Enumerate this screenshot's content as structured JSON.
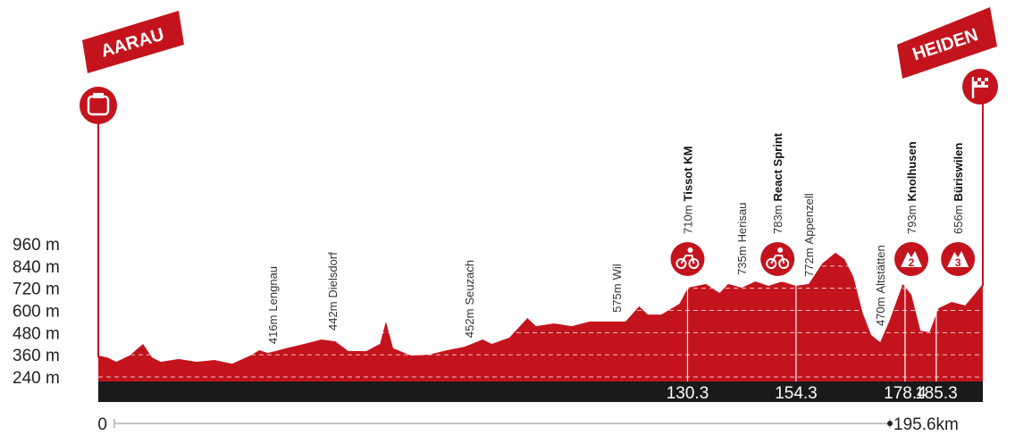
{
  "chart_data": {
    "type": "area",
    "start": "AARAU",
    "finish": "HEIDEN",
    "x": [
      0,
      2,
      4,
      6.9,
      9.9,
      11.9,
      13.8,
      17.8,
      21.7,
      25.7,
      29.6,
      33.6,
      35.6,
      37.5,
      41.5,
      45.5,
      49.4,
      52.4,
      55.3,
      59.3,
      62.3,
      63.6,
      65.2,
      69.2,
      73.1,
      77.1,
      81,
      85,
      87,
      90.9,
      94.9,
      96.8,
      100.8,
      104.7,
      108.7,
      112.6,
      116.6,
      119.6,
      121.5,
      124.5,
      128.5,
      130.4,
      134.4,
      137.4,
      139.3,
      142.3,
      145.3,
      148.2,
      151.2,
      154.2,
      157.1,
      160.1,
      163,
      165,
      167,
      169,
      170.9,
      172.9,
      174.9,
      177.9,
      179.8,
      181.8,
      183.8,
      185.8,
      188.7,
      191.7,
      193.7,
      195.6
    ],
    "values": [
      356,
      346,
      322,
      356,
      419,
      346,
      322,
      337,
      322,
      332,
      312,
      356,
      385,
      370,
      395,
      419,
      443,
      433,
      380,
      380,
      419,
      540,
      395,
      356,
      361,
      385,
      404,
      443,
      419,
      453,
      559,
      515,
      530,
      515,
      540,
      540,
      540,
      622,
      578,
      578,
      636,
      723,
      743,
      694,
      743,
      723,
      757,
      733,
      757,
      733,
      743,
      854,
      912,
      878,
      781,
      588,
      467,
      428,
      540,
      743,
      685,
      491,
      482,
      612,
      646,
      627,
      685,
      743
    ],
    "color": "#c3141e",
    "xlim": [
      0,
      195.6
    ],
    "ylim": [
      240,
      960
    ],
    "yticks": [
      {
        "value": 960,
        "label": "960 m"
      },
      {
        "value": 840,
        "label": "840 m"
      },
      {
        "value": 720,
        "label": "720 m"
      },
      {
        "value": 600,
        "label": "600 m"
      },
      {
        "value": 480,
        "label": "480 m"
      },
      {
        "value": 360,
        "label": "360 m"
      },
      {
        "value": 240,
        "label": "240 m"
      }
    ],
    "xticks": [
      0,
      {
        "value": 195.6,
        "label": "195.6km"
      }
    ],
    "grid": true,
    "km_markers": [
      130.3,
      154.3,
      178.4,
      185.3
    ],
    "waypoints": [
      {
        "km": 38.5,
        "elevation": "416m",
        "name": "Lengnau",
        "bold": false
      },
      {
        "km": 51.8,
        "elevation": "442m",
        "name": "Dielsdorf",
        "bold": false
      },
      {
        "km": 82,
        "elevation": "452m",
        "name": "Seuzach",
        "bold": false
      },
      {
        "km": 114.6,
        "elevation": "575m",
        "name": "Wil",
        "bold": false
      },
      {
        "km": 130.3,
        "elevation": "710m",
        "name": "Tissot KM",
        "bold": true
      },
      {
        "km": 142.3,
        "elevation": "735m",
        "name": "Herisau",
        "bold": false
      },
      {
        "km": 150.2,
        "elevation": "783m",
        "name": "React Sprint",
        "bold": true
      },
      {
        "km": 157.1,
        "elevation": "772m",
        "name": "Appenzell",
        "bold": false
      },
      {
        "km": 172.9,
        "elevation": "470m",
        "name": "Altstätten",
        "bold": false
      },
      {
        "km": 179.8,
        "elevation": "793m",
        "name": "Knolhusen",
        "bold": true,
        "category": "2"
      },
      {
        "km": 190.1,
        "elevation": "656m",
        "name": "Büriswilen",
        "bold": true,
        "category": "3"
      }
    ]
  }
}
